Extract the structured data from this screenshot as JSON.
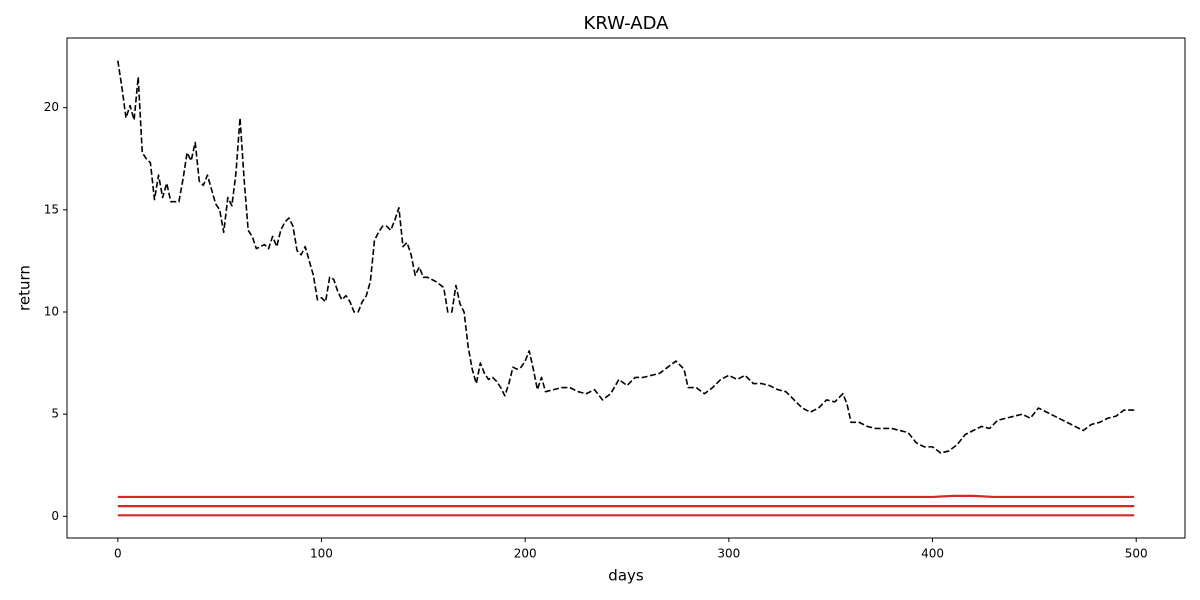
{
  "chart_data": {
    "type": "line",
    "title": "KRW-ADA",
    "x_label": "days",
    "y_label": "return",
    "xlim": [
      -24.95,
      523.95
    ],
    "ylim": [
      -1.06,
      23.41
    ],
    "xticks": [
      0,
      100,
      200,
      300,
      400,
      500
    ],
    "yticks": [
      0,
      5,
      10,
      15,
      20
    ],
    "grid": false,
    "series": [
      {
        "color": "#000000",
        "linestyle": "dashed",
        "x": [
          0,
          2,
          4,
          6,
          8,
          10,
          12,
          14,
          16,
          18,
          20,
          22,
          24,
          26,
          30,
          32,
          34,
          36,
          38,
          40,
          42,
          44,
          46,
          48,
          50,
          52,
          54,
          56,
          58,
          60,
          62,
          64,
          66,
          68,
          72,
          74,
          76,
          78,
          80,
          82,
          84,
          86,
          88,
          90,
          92,
          94,
          96,
          98,
          100,
          102,
          104,
          106,
          108,
          110,
          112,
          114,
          116,
          118,
          120,
          122,
          124,
          126,
          128,
          130,
          132,
          134,
          136,
          138,
          140,
          142,
          144,
          146,
          148,
          150,
          152,
          156,
          160,
          162,
          164,
          166,
          168,
          170,
          172,
          174,
          176,
          178,
          180,
          182,
          184,
          186,
          188,
          190,
          192,
          194,
          196,
          198,
          200,
          202,
          204,
          206,
          208,
          210,
          214,
          218,
          222,
          226,
          230,
          234,
          238,
          242,
          246,
          250,
          254,
          258,
          262,
          266,
          270,
          274,
          278,
          280,
          284,
          288,
          292,
          296,
          300,
          304,
          308,
          312,
          316,
          320,
          324,
          328,
          332,
          336,
          340,
          344,
          348,
          352,
          356,
          358,
          360,
          364,
          368,
          372,
          380,
          388,
          392,
          396,
          400,
          404,
          408,
          412,
          416,
          420,
          424,
          428,
          432,
          436,
          440,
          444,
          448,
          452,
          456,
          460,
          464,
          468,
          472,
          474,
          478,
          482,
          486,
          490,
          494,
          499
        ],
        "values": [
          22.3,
          21,
          19.5,
          20.1,
          19.4,
          21.5,
          17.8,
          17.5,
          17.3,
          15.5,
          16.7,
          15.6,
          16.3,
          15.4,
          15.4,
          16.5,
          17.8,
          17.4,
          18.3,
          16.4,
          16.2,
          16.7,
          16.0,
          15.3,
          15.0,
          13.9,
          15.6,
          15.2,
          16.8,
          19.5,
          16.5,
          14.0,
          13.7,
          13.1,
          13.3,
          13.1,
          13.7,
          13.2,
          14.0,
          14.4,
          14.6,
          14.2,
          13.0,
          12.8,
          13.2,
          12.5,
          11.8,
          10.6,
          10.7,
          10.5,
          11.7,
          11.6,
          11.0,
          10.6,
          10.8,
          10.5,
          10.0,
          10.0,
          10.5,
          10.8,
          11.5,
          13.5,
          13.9,
          14.2,
          14.2,
          14.0,
          14.5,
          15.1,
          13.2,
          13.4,
          12.8,
          11.8,
          12.2,
          11.7,
          11.7,
          11.5,
          11.2,
          10.0,
          10.0,
          11.3,
          10.4,
          10.0,
          8.3,
          7.2,
          6.5,
          7.5,
          7.0,
          6.7,
          6.8,
          6.6,
          6.3,
          5.9,
          6.5,
          7.3,
          7.2,
          7.3,
          7.6,
          8.1,
          7.2,
          6.2,
          6.8,
          6.1,
          6.2,
          6.3,
          6.3,
          6.1,
          6.0,
          6.2,
          5.7,
          6.0,
          6.7,
          6.4,
          6.8,
          6.8,
          6.9,
          7.0,
          7.3,
          7.6,
          7.2,
          6.3,
          6.3,
          6.0,
          6.3,
          6.7,
          6.9,
          6.7,
          6.9,
          6.5,
          6.5,
          6.4,
          6.2,
          6.1,
          5.7,
          5.3,
          5.1,
          5.3,
          5.7,
          5.6,
          6.0,
          5.5,
          4.6,
          4.6,
          4.4,
          4.3,
          4.3,
          4.1,
          3.6,
          3.4,
          3.4,
          3.1,
          3.2,
          3.5,
          4.0,
          4.2,
          4.4,
          4.3,
          4.7,
          4.8,
          4.9,
          5.0,
          4.8,
          5.3,
          5.1,
          4.9,
          4.7,
          4.5,
          4.3,
          4.2,
          4.5,
          4.6,
          4.8,
          4.9,
          5.2,
          5.2
        ]
      },
      {
        "color": "#d62728",
        "linestyle": "solid",
        "x": [
          0,
          400,
          410,
          420,
          430,
          499
        ],
        "values": [
          0.95,
          0.95,
          1.0,
          1.0,
          0.95,
          0.95
        ]
      },
      {
        "color": "#d62728",
        "linestyle": "solid",
        "x": [
          0,
          499
        ],
        "values": [
          0.5,
          0.5
        ]
      },
      {
        "color": "#d62728",
        "linestyle": "solid",
        "x": [
          0,
          499
        ],
        "values": [
          0.05,
          0.05
        ]
      }
    ]
  }
}
